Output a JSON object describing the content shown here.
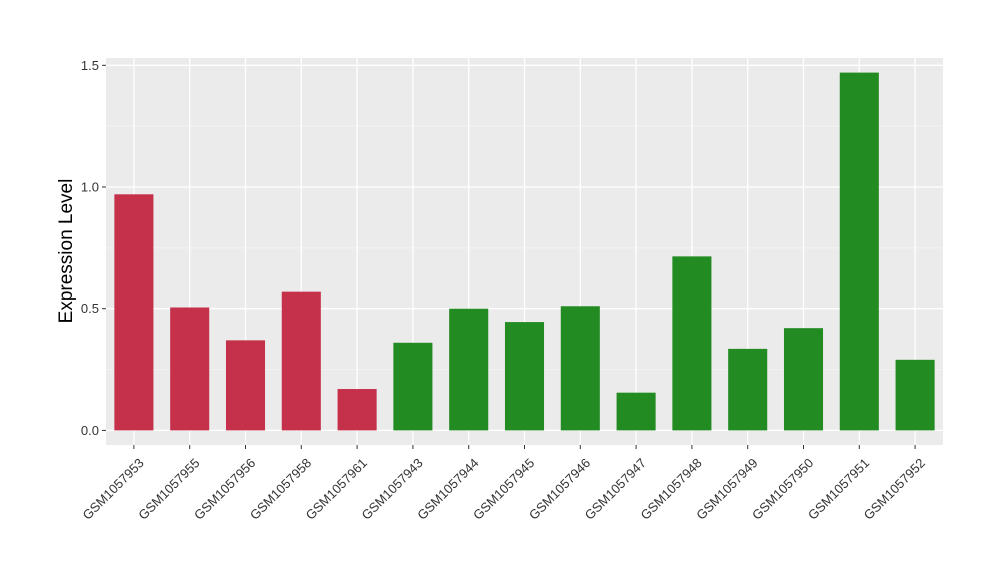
{
  "chart_data": {
    "type": "bar",
    "title": "",
    "xlabel": "",
    "ylabel": "Expression Level",
    "ylim": [
      -0.06,
      1.53
    ],
    "yticks": [
      0.0,
      0.5,
      1.0,
      1.5
    ],
    "ytick_labels": [
      "0.0",
      "0.5",
      "1.0",
      "1.5"
    ],
    "grid": true,
    "background": "#EBEBEB",
    "categories": [
      "GSM1057953",
      "GSM1057955",
      "GSM1057956",
      "GSM1057958",
      "GSM1057961",
      "GSM1057943",
      "GSM1057944",
      "GSM1057945",
      "GSM1057946",
      "GSM1057947",
      "GSM1057948",
      "GSM1057949",
      "GSM1057950",
      "GSM1057951",
      "GSM1057952"
    ],
    "values": [
      0.97,
      0.505,
      0.37,
      0.57,
      0.17,
      0.36,
      0.5,
      0.445,
      0.51,
      0.155,
      0.715,
      0.335,
      0.42,
      1.47,
      0.29
    ],
    "colors": [
      "#C5304A",
      "#C5304A",
      "#C5304A",
      "#C5304A",
      "#C5304A",
      "#228B22",
      "#228B22",
      "#228B22",
      "#228B22",
      "#228B22",
      "#228B22",
      "#228B22",
      "#228B22",
      "#228B22",
      "#228B22"
    ]
  }
}
